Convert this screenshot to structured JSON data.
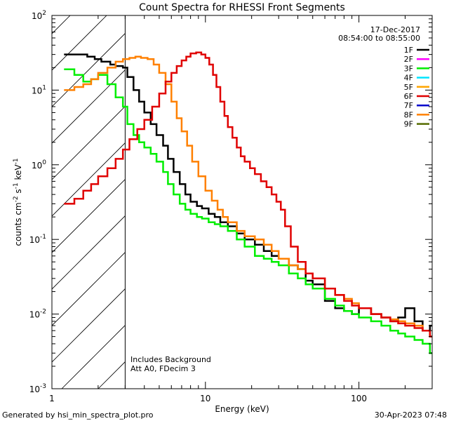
{
  "chart_data": {
    "type": "line",
    "title": "Count Spectra for RHESSI Front Segments",
    "xlabel": "Energy (keV)",
    "ylabel": "counts cm⁻² s⁻¹ keV⁻¹",
    "xscale": "log",
    "yscale": "log",
    "xlim": [
      1,
      300
    ],
    "ylim": [
      0.001,
      100
    ],
    "x_ticks": [
      {
        "value": 1,
        "label": "1"
      },
      {
        "value": 10,
        "label": "10"
      },
      {
        "value": 100,
        "label": "100"
      }
    ],
    "y_ticks": [
      {
        "value": 100,
        "base": "10",
        "exp": "2"
      },
      {
        "value": 10,
        "base": "10",
        "exp": "1"
      },
      {
        "value": 1,
        "base": "10",
        "exp": "0"
      },
      {
        "value": 0.1,
        "base": "10",
        "exp": "-1"
      },
      {
        "value": 0.01,
        "base": "10",
        "exp": "-2"
      },
      {
        "value": 0.001,
        "base": "10",
        "exp": "-3"
      }
    ],
    "date": "17-Dec-2017",
    "time_range": "08:54:00 to 08:55:00",
    "cutoff_energy_kev": 3,
    "notes": [
      "Includes Background",
      "Att A0, FDecim 3"
    ],
    "legend": [
      {
        "name": "1F",
        "color": "#000000"
      },
      {
        "name": "2F",
        "color": "#ff00ff"
      },
      {
        "name": "3F",
        "color": "#00ee00"
      },
      {
        "name": "4F",
        "color": "#00e5ff"
      },
      {
        "name": "5F",
        "color": "#ffa500"
      },
      {
        "name": "6F",
        "color": "#e00000"
      },
      {
        "name": "7F",
        "color": "#0000cc"
      },
      {
        "name": "8F",
        "color": "#ff8000"
      },
      {
        "name": "9F",
        "color": "#556b00"
      }
    ],
    "series": [
      {
        "name": "1F",
        "color": "#000000",
        "points": [
          [
            1.2,
            30
          ],
          [
            1.5,
            30
          ],
          [
            1.7,
            28
          ],
          [
            1.9,
            26
          ],
          [
            2.1,
            24
          ],
          [
            2.4,
            22
          ],
          [
            2.6,
            21
          ],
          [
            2.9,
            20
          ],
          [
            3.1,
            15
          ],
          [
            3.4,
            10
          ],
          [
            3.7,
            7
          ],
          [
            4.0,
            5
          ],
          [
            4.4,
            3.5
          ],
          [
            4.8,
            2.5
          ],
          [
            5.3,
            1.8
          ],
          [
            5.7,
            1.2
          ],
          [
            6.2,
            0.8
          ],
          [
            6.8,
            0.55
          ],
          [
            7.4,
            0.4
          ],
          [
            8.0,
            0.32
          ],
          [
            8.8,
            0.28
          ],
          [
            9.5,
            0.26
          ],
          [
            10.5,
            0.22
          ],
          [
            11.5,
            0.2
          ],
          [
            12.5,
            0.17
          ],
          [
            14,
            0.15
          ],
          [
            16,
            0.12
          ],
          [
            18,
            0.1
          ],
          [
            21,
            0.085
          ],
          [
            24,
            0.07
          ],
          [
            27,
            0.06
          ],
          [
            30,
            0.055
          ],
          [
            35,
            0.045
          ],
          [
            40,
            0.04
          ],
          [
            45,
            0.028
          ],
          [
            50,
            0.025
          ],
          [
            60,
            0.015
          ],
          [
            70,
            0.012
          ],
          [
            80,
            0.011
          ],
          [
            90,
            0.01
          ],
          [
            100,
            0.012
          ],
          [
            120,
            0.01
          ],
          [
            140,
            0.009
          ],
          [
            160,
            0.008
          ],
          [
            180,
            0.009
          ],
          [
            200,
            0.012
          ],
          [
            230,
            0.008
          ],
          [
            260,
            0.006
          ],
          [
            290,
            0.007
          ]
        ]
      },
      {
        "name": "3F",
        "color": "#00ee00",
        "points": [
          [
            1.2,
            19
          ],
          [
            1.4,
            16
          ],
          [
            1.6,
            13
          ],
          [
            1.8,
            14
          ],
          [
            2.0,
            16
          ],
          [
            2.3,
            12
          ],
          [
            2.6,
            8
          ],
          [
            2.9,
            6
          ],
          [
            3.1,
            3.5
          ],
          [
            3.4,
            2.5
          ],
          [
            3.7,
            2.0
          ],
          [
            4.0,
            1.7
          ],
          [
            4.4,
            1.4
          ],
          [
            4.8,
            1.1
          ],
          [
            5.3,
            0.8
          ],
          [
            5.7,
            0.55
          ],
          [
            6.2,
            0.4
          ],
          [
            6.8,
            0.3
          ],
          [
            7.4,
            0.25
          ],
          [
            8.0,
            0.22
          ],
          [
            8.8,
            0.2
          ],
          [
            9.5,
            0.19
          ],
          [
            10.5,
            0.17
          ],
          [
            11.5,
            0.16
          ],
          [
            12.5,
            0.15
          ],
          [
            14,
            0.13
          ],
          [
            16,
            0.1
          ],
          [
            18,
            0.08
          ],
          [
            21,
            0.06
          ],
          [
            24,
            0.055
          ],
          [
            27,
            0.05
          ],
          [
            30,
            0.045
          ],
          [
            35,
            0.035
          ],
          [
            40,
            0.03
          ],
          [
            45,
            0.025
          ],
          [
            50,
            0.022
          ],
          [
            60,
            0.016
          ],
          [
            70,
            0.013
          ],
          [
            80,
            0.011
          ],
          [
            90,
            0.01
          ],
          [
            100,
            0.009
          ],
          [
            120,
            0.008
          ],
          [
            140,
            0.007
          ],
          [
            160,
            0.006
          ],
          [
            180,
            0.0055
          ],
          [
            200,
            0.005
          ],
          [
            230,
            0.0045
          ],
          [
            260,
            0.004
          ],
          [
            290,
            0.003
          ]
        ]
      },
      {
        "name": "8F",
        "color": "#ff8000",
        "points": [
          [
            1.2,
            10
          ],
          [
            1.4,
            11
          ],
          [
            1.6,
            12
          ],
          [
            1.8,
            14
          ],
          [
            2.0,
            17
          ],
          [
            2.3,
            20
          ],
          [
            2.6,
            24
          ],
          [
            2.9,
            26
          ],
          [
            3.2,
            27
          ],
          [
            3.5,
            28
          ],
          [
            3.8,
            27
          ],
          [
            4.2,
            26
          ],
          [
            4.6,
            22
          ],
          [
            5.0,
            17
          ],
          [
            5.5,
            12
          ],
          [
            6.0,
            7
          ],
          [
            6.5,
            4.2
          ],
          [
            7.0,
            2.8
          ],
          [
            7.6,
            1.8
          ],
          [
            8.2,
            1.1
          ],
          [
            9.0,
            0.7
          ],
          [
            10,
            0.45
          ],
          [
            11,
            0.33
          ],
          [
            12,
            0.25
          ],
          [
            13,
            0.2
          ],
          [
            14,
            0.17
          ],
          [
            16,
            0.13
          ],
          [
            18,
            0.11
          ],
          [
            21,
            0.1
          ],
          [
            24,
            0.085
          ],
          [
            27,
            0.07
          ],
          [
            30,
            0.055
          ],
          [
            35,
            0.045
          ],
          [
            40,
            0.04
          ],
          [
            45,
            0.035
          ],
          [
            50,
            0.03
          ],
          [
            60,
            0.022
          ],
          [
            70,
            0.018
          ],
          [
            80,
            0.016
          ],
          [
            90,
            0.014
          ],
          [
            100,
            0.012
          ],
          [
            120,
            0.01
          ],
          [
            140,
            0.009
          ],
          [
            160,
            0.0085
          ],
          [
            180,
            0.008
          ],
          [
            200,
            0.0075
          ],
          [
            230,
            0.007
          ],
          [
            260,
            0.006
          ],
          [
            290,
            0.005
          ]
        ]
      },
      {
        "name": "6F",
        "color": "#e00000",
        "points": [
          [
            1.2,
            0.3
          ],
          [
            1.4,
            0.35
          ],
          [
            1.6,
            0.45
          ],
          [
            1.8,
            0.55
          ],
          [
            2.0,
            0.7
          ],
          [
            2.3,
            0.9
          ],
          [
            2.6,
            1.2
          ],
          [
            2.9,
            1.6
          ],
          [
            3.2,
            2.2
          ],
          [
            3.6,
            3.0
          ],
          [
            4.0,
            4.0
          ],
          [
            4.5,
            6.0
          ],
          [
            5.0,
            9.0
          ],
          [
            5.5,
            13
          ],
          [
            6.0,
            17
          ],
          [
            6.5,
            21
          ],
          [
            7.0,
            25
          ],
          [
            7.5,
            28
          ],
          [
            8.0,
            31
          ],
          [
            8.7,
            32
          ],
          [
            9.4,
            30
          ],
          [
            10,
            27
          ],
          [
            10.6,
            22
          ],
          [
            11.2,
            16
          ],
          [
            11.8,
            11
          ],
          [
            12.5,
            7
          ],
          [
            13.3,
            4.5
          ],
          [
            14,
            3.2
          ],
          [
            15,
            2.3
          ],
          [
            16,
            1.7
          ],
          [
            17,
            1.3
          ],
          [
            18,
            1.1
          ],
          [
            19.5,
            0.9
          ],
          [
            21,
            0.75
          ],
          [
            23,
            0.6
          ],
          [
            25,
            0.5
          ],
          [
            27,
            0.4
          ],
          [
            29,
            0.32
          ],
          [
            31,
            0.25
          ],
          [
            33,
            0.15
          ],
          [
            36,
            0.08
          ],
          [
            40,
            0.05
          ],
          [
            45,
            0.035
          ],
          [
            50,
            0.03
          ],
          [
            60,
            0.022
          ],
          [
            70,
            0.018
          ],
          [
            80,
            0.015
          ],
          [
            90,
            0.013
          ],
          [
            100,
            0.012
          ],
          [
            120,
            0.01
          ],
          [
            140,
            0.009
          ],
          [
            160,
            0.008
          ],
          [
            180,
            0.0075
          ],
          [
            200,
            0.007
          ],
          [
            230,
            0.0065
          ],
          [
            260,
            0.006
          ],
          [
            290,
            0.005
          ]
        ]
      }
    ]
  },
  "footer": {
    "generated_by": "Generated by hsi_min_spectra_plot.pro",
    "date": "30-Apr-2023 07:48"
  }
}
